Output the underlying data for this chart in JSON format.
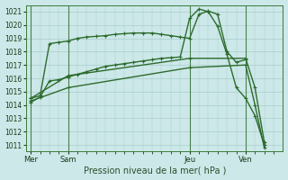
{
  "xlabel": "Pression niveau de la mer( hPa )",
  "ylim": [
    1010.5,
    1021.5
  ],
  "yticks": [
    1011,
    1012,
    1013,
    1014,
    1015,
    1016,
    1017,
    1018,
    1019,
    1020,
    1021
  ],
  "background_color": "#cce8e8",
  "grid_color": "#aacccc",
  "line_color": "#2d6b2d",
  "day_labels": [
    "Mer",
    "Sam",
    "Jeu",
    "Ven"
  ],
  "day_positions": [
    0,
    4,
    17,
    23
  ],
  "xlim": [
    -0.5,
    27
  ],
  "line1_x": [
    0,
    1,
    2,
    3,
    4,
    5,
    6,
    7,
    8,
    9,
    10,
    11,
    12,
    13,
    14,
    15,
    16,
    17,
    18,
    19,
    20,
    21,
    22,
    23
  ],
  "line1_y": [
    1014.5,
    1014.7,
    1018.6,
    1018.7,
    1018.8,
    1019.0,
    1019.1,
    1019.15,
    1019.2,
    1019.3,
    1019.35,
    1019.4,
    1019.4,
    1019.4,
    1019.3,
    1019.2,
    1019.1,
    1019.0,
    1020.8,
    1021.05,
    1020.8,
    1018.0,
    1017.2,
    1017.4
  ],
  "line2_x": [
    0,
    1,
    2,
    3,
    4,
    5,
    6,
    7,
    8,
    9,
    10,
    11,
    12,
    13,
    14,
    15,
    16,
    17,
    18,
    19,
    20,
    21,
    22,
    23,
    24,
    25
  ],
  "line2_y": [
    1014.2,
    1014.6,
    1015.8,
    1015.9,
    1016.1,
    1016.3,
    1016.5,
    1016.7,
    1016.9,
    1017.0,
    1017.1,
    1017.2,
    1017.3,
    1017.4,
    1017.5,
    1017.55,
    1017.6,
    1020.5,
    1021.2,
    1021.0,
    1019.9,
    1017.8,
    1015.3,
    1014.5,
    1013.2,
    1011.0
  ],
  "line3_x": [
    0,
    4,
    17,
    23,
    24,
    25
  ],
  "line3_y": [
    1014.5,
    1016.2,
    1017.5,
    1017.5,
    1015.3,
    1011.2
  ],
  "line4_x": [
    0,
    4,
    17,
    23,
    24,
    25
  ],
  "line4_y": [
    1014.3,
    1015.3,
    1016.8,
    1017.0,
    1014.0,
    1010.8
  ]
}
